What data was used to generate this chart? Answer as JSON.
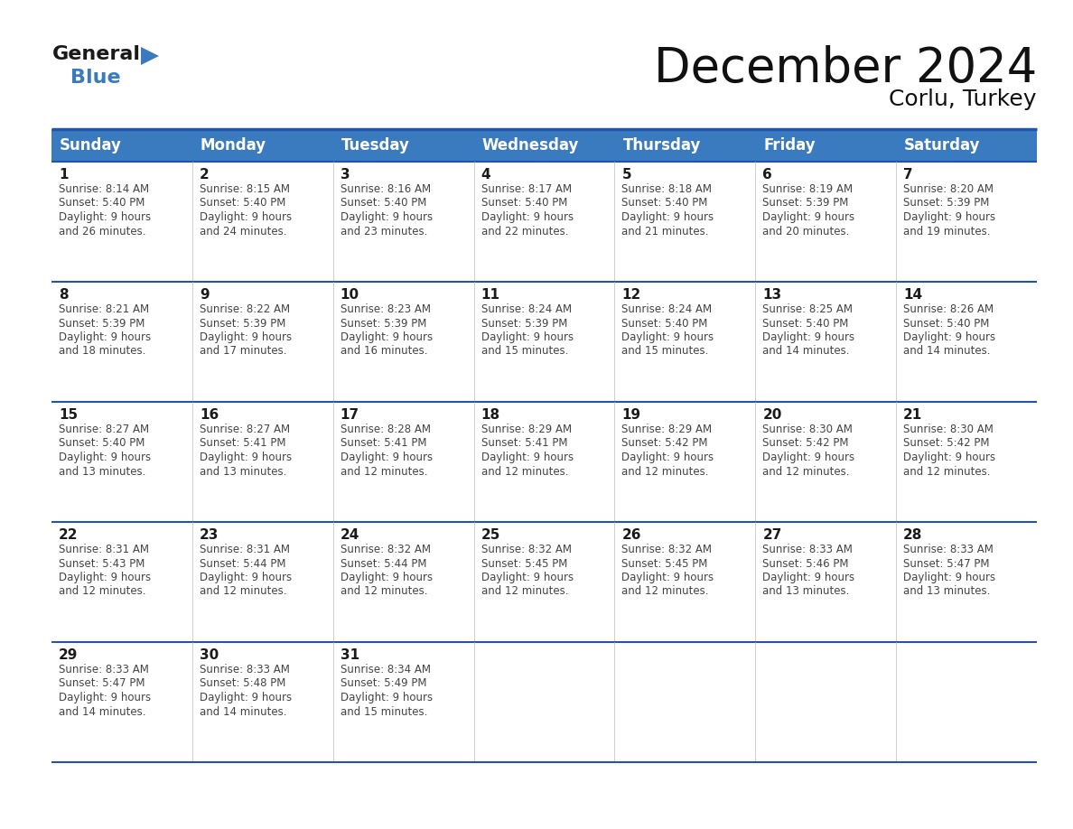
{
  "title": "December 2024",
  "subtitle": "Corlu, Turkey",
  "header_color": "#3a7bbf",
  "header_text_color": "#ffffff",
  "cell_bg_color": "#ffffff",
  "cell_text_color": "#444444",
  "day_num_color": "#1a1a1a",
  "grid_line_color": "#2255aa",
  "days_of_week": [
    "Sunday",
    "Monday",
    "Tuesday",
    "Wednesday",
    "Thursday",
    "Friday",
    "Saturday"
  ],
  "calendar_data": [
    [
      {
        "day": 1,
        "sunrise": "8:14 AM",
        "sunset": "5:40 PM",
        "daylight_line1": "Daylight: 9 hours",
        "daylight_line2": "and 26 minutes."
      },
      {
        "day": 2,
        "sunrise": "8:15 AM",
        "sunset": "5:40 PM",
        "daylight_line1": "Daylight: 9 hours",
        "daylight_line2": "and 24 minutes."
      },
      {
        "day": 3,
        "sunrise": "8:16 AM",
        "sunset": "5:40 PM",
        "daylight_line1": "Daylight: 9 hours",
        "daylight_line2": "and 23 minutes."
      },
      {
        "day": 4,
        "sunrise": "8:17 AM",
        "sunset": "5:40 PM",
        "daylight_line1": "Daylight: 9 hours",
        "daylight_line2": "and 22 minutes."
      },
      {
        "day": 5,
        "sunrise": "8:18 AM",
        "sunset": "5:40 PM",
        "daylight_line1": "Daylight: 9 hours",
        "daylight_line2": "and 21 minutes."
      },
      {
        "day": 6,
        "sunrise": "8:19 AM",
        "sunset": "5:39 PM",
        "daylight_line1": "Daylight: 9 hours",
        "daylight_line2": "and 20 minutes."
      },
      {
        "day": 7,
        "sunrise": "8:20 AM",
        "sunset": "5:39 PM",
        "daylight_line1": "Daylight: 9 hours",
        "daylight_line2": "and 19 minutes."
      }
    ],
    [
      {
        "day": 8,
        "sunrise": "8:21 AM",
        "sunset": "5:39 PM",
        "daylight_line1": "Daylight: 9 hours",
        "daylight_line2": "and 18 minutes."
      },
      {
        "day": 9,
        "sunrise": "8:22 AM",
        "sunset": "5:39 PM",
        "daylight_line1": "Daylight: 9 hours",
        "daylight_line2": "and 17 minutes."
      },
      {
        "day": 10,
        "sunrise": "8:23 AM",
        "sunset": "5:39 PM",
        "daylight_line1": "Daylight: 9 hours",
        "daylight_line2": "and 16 minutes."
      },
      {
        "day": 11,
        "sunrise": "8:24 AM",
        "sunset": "5:39 PM",
        "daylight_line1": "Daylight: 9 hours",
        "daylight_line2": "and 15 minutes."
      },
      {
        "day": 12,
        "sunrise": "8:24 AM",
        "sunset": "5:40 PM",
        "daylight_line1": "Daylight: 9 hours",
        "daylight_line2": "and 15 minutes."
      },
      {
        "day": 13,
        "sunrise": "8:25 AM",
        "sunset": "5:40 PM",
        "daylight_line1": "Daylight: 9 hours",
        "daylight_line2": "and 14 minutes."
      },
      {
        "day": 14,
        "sunrise": "8:26 AM",
        "sunset": "5:40 PM",
        "daylight_line1": "Daylight: 9 hours",
        "daylight_line2": "and 14 minutes."
      }
    ],
    [
      {
        "day": 15,
        "sunrise": "8:27 AM",
        "sunset": "5:40 PM",
        "daylight_line1": "Daylight: 9 hours",
        "daylight_line2": "and 13 minutes."
      },
      {
        "day": 16,
        "sunrise": "8:27 AM",
        "sunset": "5:41 PM",
        "daylight_line1": "Daylight: 9 hours",
        "daylight_line2": "and 13 minutes."
      },
      {
        "day": 17,
        "sunrise": "8:28 AM",
        "sunset": "5:41 PM",
        "daylight_line1": "Daylight: 9 hours",
        "daylight_line2": "and 12 minutes."
      },
      {
        "day": 18,
        "sunrise": "8:29 AM",
        "sunset": "5:41 PM",
        "daylight_line1": "Daylight: 9 hours",
        "daylight_line2": "and 12 minutes."
      },
      {
        "day": 19,
        "sunrise": "8:29 AM",
        "sunset": "5:42 PM",
        "daylight_line1": "Daylight: 9 hours",
        "daylight_line2": "and 12 minutes."
      },
      {
        "day": 20,
        "sunrise": "8:30 AM",
        "sunset": "5:42 PM",
        "daylight_line1": "Daylight: 9 hours",
        "daylight_line2": "and 12 minutes."
      },
      {
        "day": 21,
        "sunrise": "8:30 AM",
        "sunset": "5:42 PM",
        "daylight_line1": "Daylight: 9 hours",
        "daylight_line2": "and 12 minutes."
      }
    ],
    [
      {
        "day": 22,
        "sunrise": "8:31 AM",
        "sunset": "5:43 PM",
        "daylight_line1": "Daylight: 9 hours",
        "daylight_line2": "and 12 minutes."
      },
      {
        "day": 23,
        "sunrise": "8:31 AM",
        "sunset": "5:44 PM",
        "daylight_line1": "Daylight: 9 hours",
        "daylight_line2": "and 12 minutes."
      },
      {
        "day": 24,
        "sunrise": "8:32 AM",
        "sunset": "5:44 PM",
        "daylight_line1": "Daylight: 9 hours",
        "daylight_line2": "and 12 minutes."
      },
      {
        "day": 25,
        "sunrise": "8:32 AM",
        "sunset": "5:45 PM",
        "daylight_line1": "Daylight: 9 hours",
        "daylight_line2": "and 12 minutes."
      },
      {
        "day": 26,
        "sunrise": "8:32 AM",
        "sunset": "5:45 PM",
        "daylight_line1": "Daylight: 9 hours",
        "daylight_line2": "and 12 minutes."
      },
      {
        "day": 27,
        "sunrise": "8:33 AM",
        "sunset": "5:46 PM",
        "daylight_line1": "Daylight: 9 hours",
        "daylight_line2": "and 13 minutes."
      },
      {
        "day": 28,
        "sunrise": "8:33 AM",
        "sunset": "5:47 PM",
        "daylight_line1": "Daylight: 9 hours",
        "daylight_line2": "and 13 minutes."
      }
    ],
    [
      {
        "day": 29,
        "sunrise": "8:33 AM",
        "sunset": "5:47 PM",
        "daylight_line1": "Daylight: 9 hours",
        "daylight_line2": "and 14 minutes."
      },
      {
        "day": 30,
        "sunrise": "8:33 AM",
        "sunset": "5:48 PM",
        "daylight_line1": "Daylight: 9 hours",
        "daylight_line2": "and 14 minutes."
      },
      {
        "day": 31,
        "sunrise": "8:34 AM",
        "sunset": "5:49 PM",
        "daylight_line1": "Daylight: 9 hours",
        "daylight_line2": "and 15 minutes."
      },
      null,
      null,
      null,
      null
    ]
  ],
  "logo_general_color": "#1a1a1a",
  "logo_blue_color": "#3a7bbf",
  "logo_arrow_color": "#3a7bbf",
  "title_fontsize": 38,
  "subtitle_fontsize": 18,
  "header_fontsize": 12,
  "daynum_fontsize": 11,
  "cell_fontsize": 8.5
}
